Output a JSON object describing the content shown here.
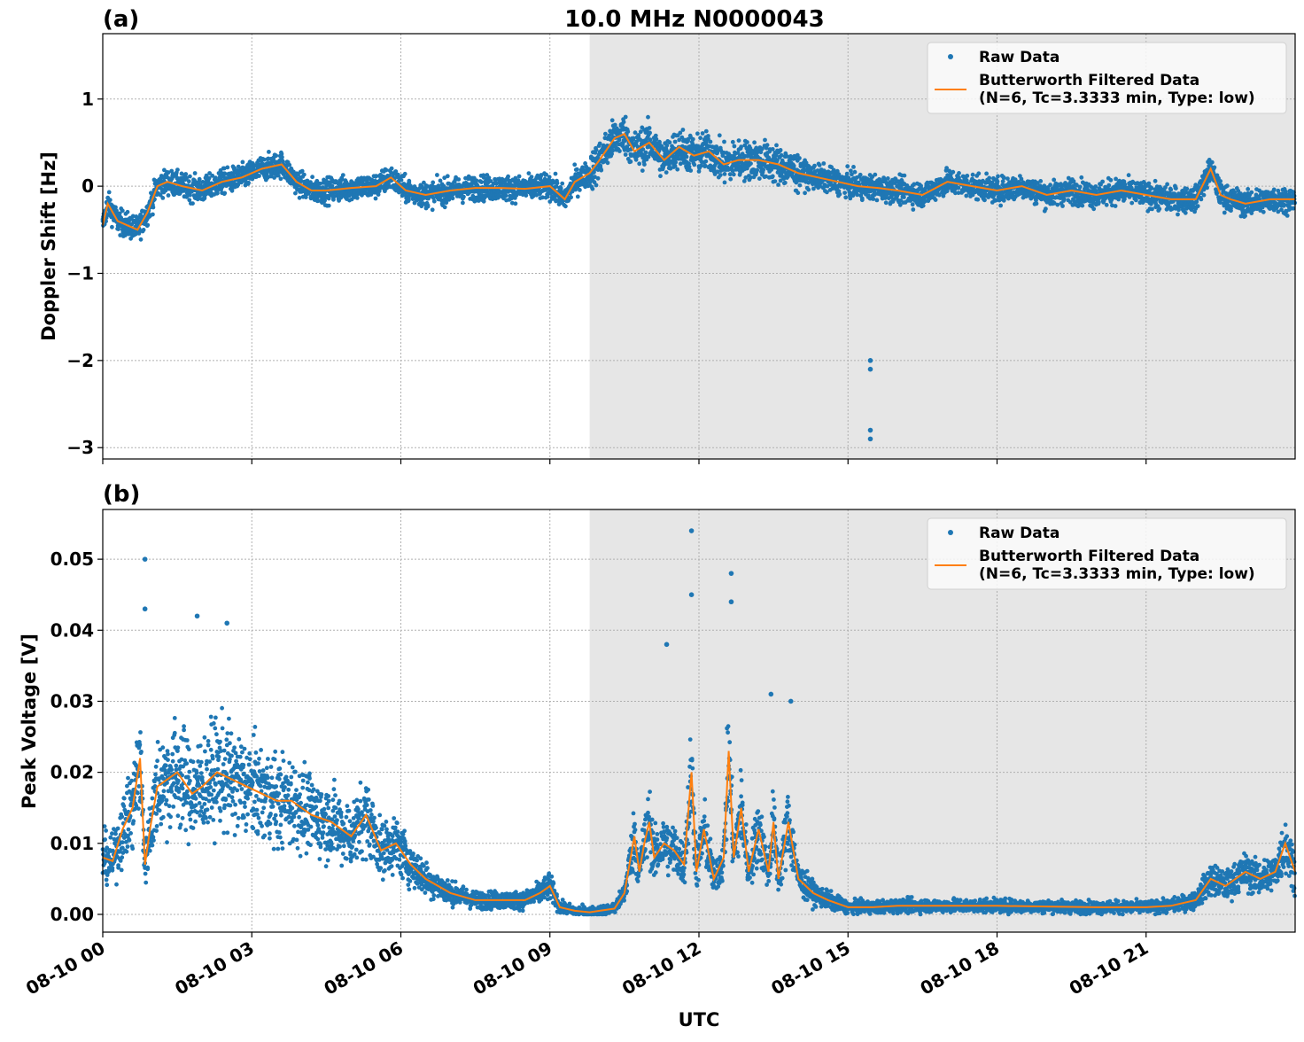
{
  "figure": {
    "title": "10.0 MHz N0000043",
    "xlabel": "UTC",
    "night_shading": {
      "start_hour": 9.8,
      "end_hour": 24,
      "color": "#e6e6e6"
    },
    "x_tick_labels": [
      "08-10 00",
      "08-10 03",
      "08-10 06",
      "08-10 09",
      "08-10 12",
      "08-10 15",
      "08-10 18",
      "08-10 21"
    ],
    "x_ticks_hours": [
      0,
      3,
      6,
      9,
      12,
      15,
      18,
      21
    ],
    "xlim_hours": [
      0,
      24
    ]
  },
  "chart_data": [
    {
      "panel": "(a)",
      "type": "scatter",
      "ylabel": "Doppler Shift [Hz]",
      "ylim": [
        -3.13,
        1.75
      ],
      "yticks": [
        1,
        0,
        -1,
        -2,
        -3
      ],
      "ytick_labels": [
        "1",
        "0",
        "−1",
        "−2",
        "−3"
      ],
      "grid": true,
      "legend_position": "top-right",
      "series": [
        {
          "name": "Raw Data",
          "style": "dots",
          "color": "#1f77b4"
        },
        {
          "name": "Butterworth Filtered Data",
          "name_line2": "(N=6, Tc=3.3333 min, Type: low)",
          "style": "line",
          "color": "#ff7f0e",
          "x_hours": [
            0,
            0.1,
            0.3,
            0.5,
            0.7,
            0.9,
            1.1,
            1.3,
            1.6,
            2.0,
            2.4,
            2.8,
            3.2,
            3.6,
            3.9,
            4.2,
            4.5,
            5.0,
            5.5,
            5.8,
            6.1,
            6.5,
            7.0,
            7.5,
            8.0,
            8.5,
            9.0,
            9.3,
            9.5,
            9.8,
            10.0,
            10.3,
            10.5,
            10.7,
            11.0,
            11.3,
            11.6,
            11.9,
            12.2,
            12.5,
            12.8,
            13.2,
            13.6,
            14.0,
            14.4,
            14.8,
            15.2,
            15.6,
            16.0,
            16.5,
            17.0,
            17.5,
            18.0,
            18.5,
            19.0,
            19.5,
            20.0,
            20.5,
            21.0,
            21.5,
            22.0,
            22.3,
            22.5,
            22.7,
            23.0,
            23.5,
            24.0
          ],
          "y": [
            -0.45,
            -0.2,
            -0.4,
            -0.45,
            -0.5,
            -0.3,
            0.0,
            0.05,
            0.0,
            -0.05,
            0.05,
            0.1,
            0.2,
            0.25,
            0.05,
            -0.05,
            -0.05,
            -0.02,
            0.0,
            0.1,
            -0.05,
            -0.1,
            -0.05,
            -0.02,
            -0.02,
            -0.03,
            0.0,
            -0.15,
            0.05,
            0.15,
            0.3,
            0.55,
            0.6,
            0.4,
            0.5,
            0.3,
            0.45,
            0.35,
            0.4,
            0.25,
            0.3,
            0.3,
            0.25,
            0.15,
            0.1,
            0.05,
            0.0,
            -0.02,
            -0.05,
            -0.1,
            0.05,
            0.0,
            -0.05,
            0.0,
            -0.1,
            -0.05,
            -0.1,
            -0.05,
            -0.1,
            -0.15,
            -0.15,
            0.2,
            -0.1,
            -0.15,
            -0.2,
            -0.15,
            -0.15
          ]
        }
      ],
      "outliers": {
        "x_hours": [
          15.45,
          15.45,
          15.45,
          15.45
        ],
        "y": [
          -2.0,
          -2.1,
          -2.8,
          -2.9
        ]
      }
    },
    {
      "panel": "(b)",
      "type": "scatter",
      "ylabel": "Peak Voltage [V]",
      "ylim": [
        -0.0025,
        0.057
      ],
      "yticks": [
        0.05,
        0.04,
        0.03,
        0.02,
        0.01,
        0.0
      ],
      "ytick_labels": [
        "0.05",
        "0.04",
        "0.03",
        "0.02",
        "0.01",
        "0.00"
      ],
      "grid": true,
      "legend_position": "top-right",
      "series": [
        {
          "name": "Raw Data",
          "style": "dots",
          "color": "#1f77b4"
        },
        {
          "name": "Butterworth Filtered Data",
          "name_line2": "(N=6, Tc=3.3333 min, Type: low)",
          "style": "line",
          "color": "#ff7f0e",
          "x_hours": [
            0,
            0.2,
            0.4,
            0.6,
            0.75,
            0.85,
            0.95,
            1.1,
            1.3,
            1.5,
            1.8,
            2.0,
            2.3,
            2.6,
            2.9,
            3.2,
            3.5,
            3.8,
            4.2,
            4.6,
            5.0,
            5.3,
            5.6,
            5.9,
            6.2,
            6.5,
            7.0,
            7.5,
            8.0,
            8.5,
            8.8,
            9.0,
            9.2,
            9.5,
            9.8,
            10.0,
            10.3,
            10.5,
            10.7,
            10.8,
            10.9,
            11.0,
            11.1,
            11.3,
            11.5,
            11.7,
            11.85,
            11.95,
            12.1,
            12.3,
            12.5,
            12.6,
            12.7,
            12.85,
            13.0,
            13.2,
            13.4,
            13.5,
            13.6,
            13.8,
            14.0,
            14.3,
            14.6,
            15.0,
            15.5,
            16.0,
            17.0,
            18.0,
            19.0,
            20.0,
            21.0,
            21.5,
            22.0,
            22.3,
            22.6,
            23.0,
            23.3,
            23.6,
            23.8,
            24.0
          ],
          "y": [
            0.008,
            0.0075,
            0.012,
            0.015,
            0.022,
            0.007,
            0.012,
            0.018,
            0.019,
            0.02,
            0.017,
            0.018,
            0.02,
            0.019,
            0.018,
            0.017,
            0.016,
            0.016,
            0.014,
            0.013,
            0.011,
            0.014,
            0.009,
            0.01,
            0.007,
            0.005,
            0.003,
            0.002,
            0.002,
            0.002,
            0.003,
            0.004,
            0.001,
            0.0005,
            0.0003,
            0.0005,
            0.0008,
            0.003,
            0.011,
            0.006,
            0.01,
            0.013,
            0.008,
            0.01,
            0.009,
            0.007,
            0.02,
            0.006,
            0.012,
            0.005,
            0.008,
            0.023,
            0.008,
            0.015,
            0.006,
            0.012,
            0.006,
            0.013,
            0.005,
            0.013,
            0.005,
            0.003,
            0.002,
            0.001,
            0.001,
            0.0012,
            0.0012,
            0.0012,
            0.0011,
            0.001,
            0.001,
            0.0012,
            0.002,
            0.005,
            0.004,
            0.006,
            0.005,
            0.006,
            0.01,
            0.006
          ]
        }
      ],
      "outliers": {
        "x_hours": [
          0.85,
          0.85,
          1.9,
          2.5,
          11.35,
          11.85,
          11.85,
          12.65,
          12.65,
          13.45,
          13.85
        ],
        "y": [
          0.05,
          0.043,
          0.042,
          0.041,
          0.038,
          0.054,
          0.045,
          0.048,
          0.044,
          0.031,
          0.03
        ]
      }
    }
  ]
}
